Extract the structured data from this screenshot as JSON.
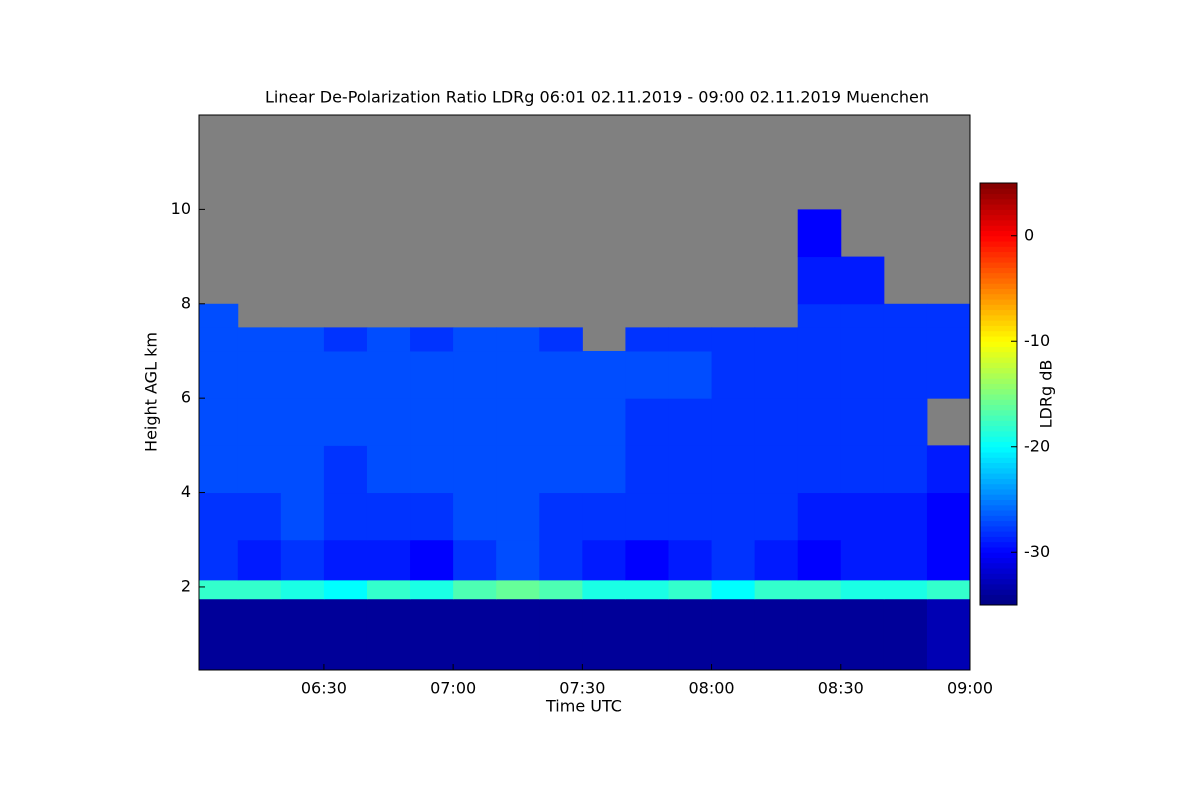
{
  "chart_data": {
    "type": "heatmap",
    "title": "Linear De-Polarization Ratio LDRg   06:01 02.11.2019 - 09:00 02.11.2019 Muenchen",
    "x_label": "Time UTC",
    "y_label": "Height AGL km",
    "colorbar_label": "LDRg dB",
    "x_edges": [
      "06:01",
      "06:10",
      "06:20",
      "06:30",
      "06:40",
      "06:50",
      "07:00",
      "07:10",
      "07:20",
      "07:30",
      "07:40",
      "07:50",
      "08:00",
      "08:10",
      "08:20",
      "08:30",
      "08:40",
      "08:50",
      "09:00"
    ],
    "y_edges": [
      0.24,
      1.75,
      2.15,
      3,
      4,
      5,
      6,
      7,
      7.5,
      8,
      9,
      10,
      12
    ],
    "z": [
      [
        -34,
        -34,
        -34,
        -34,
        -34,
        -34,
        -34,
        -34,
        -34,
        -34,
        -34,
        -34,
        -34,
        -34,
        -34,
        -34,
        -34,
        -33
      ],
      [
        -18,
        -18,
        -19,
        -20,
        -18,
        -19,
        -17,
        -16,
        -17,
        -19,
        -19,
        -18,
        -20,
        -18,
        -18,
        -19,
        -19,
        -18
      ],
      [
        -28,
        -29,
        -28,
        -29,
        -29,
        -30,
        -28,
        -27,
        -28,
        -29,
        -30,
        -29,
        -28,
        -29,
        -30,
        -29,
        -29,
        -30
      ],
      [
        -28,
        -28,
        -27,
        -28,
        -28,
        -28,
        -27,
        -27,
        -28,
        -28,
        -28,
        -28,
        -28,
        -28,
        -29,
        -29,
        -29,
        -30
      ],
      [
        -27,
        -27,
        -27,
        -28,
        -27,
        -27,
        -27,
        -27,
        -27,
        -27,
        -28,
        -28,
        -28,
        -28,
        -28,
        -28,
        -28,
        -29
      ],
      [
        -27,
        -27,
        -27,
        -27,
        -27,
        -27,
        -27,
        -27,
        -27,
        -27,
        -28,
        -28,
        -28,
        -28,
        -28,
        -28,
        -28,
        null
      ],
      [
        -27,
        -27,
        -27,
        -27,
        -27,
        -27,
        -27,
        -27,
        -27,
        -27,
        -27,
        -27,
        -28,
        -28,
        -28,
        -28,
        -28,
        -28
      ],
      [
        -27,
        -27,
        -27,
        -28,
        -27,
        -28,
        -27,
        -27,
        -28,
        null,
        -28,
        -28,
        -28,
        -28,
        -28,
        -28,
        -28,
        -28
      ],
      [
        -27,
        null,
        null,
        null,
        null,
        null,
        null,
        null,
        null,
        null,
        null,
        null,
        null,
        null,
        -28,
        -28,
        -28,
        -28
      ],
      [
        null,
        null,
        null,
        null,
        null,
        null,
        null,
        null,
        null,
        null,
        null,
        null,
        null,
        null,
        -29,
        -29,
        null,
        null
      ],
      [
        null,
        null,
        null,
        null,
        null,
        null,
        null,
        null,
        null,
        null,
        null,
        null,
        null,
        null,
        -30,
        null,
        null,
        null
      ],
      [
        null,
        null,
        null,
        null,
        null,
        null,
        null,
        null,
        null,
        null,
        null,
        null,
        null,
        null,
        null,
        null,
        null,
        null
      ]
    ],
    "no_data_color": "#808080",
    "colormap": "jet",
    "xlim": [
      "06:01",
      "09:00"
    ],
    "xticks": [
      "06:30",
      "07:00",
      "07:30",
      "08:00",
      "08:30",
      "09:00"
    ],
    "ylim": [
      0.24,
      12
    ],
    "yticks": [
      2,
      4,
      6,
      8,
      10
    ],
    "clim": [
      -35,
      5
    ],
    "cticks": [
      0,
      -10,
      -20,
      -30
    ]
  }
}
